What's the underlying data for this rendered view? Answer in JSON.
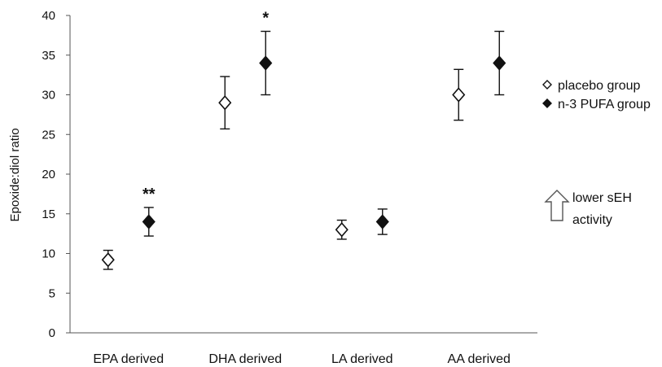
{
  "chart_data": {
    "type": "scatter",
    "title": "",
    "xlabel": "",
    "ylabel": "Epoxide:diol ratio",
    "ylim": [
      0,
      40
    ],
    "yticks": [
      0,
      5,
      10,
      15,
      20,
      25,
      30,
      35,
      40
    ],
    "categories": [
      "EPA derived",
      "DHA derived",
      "LA derived",
      "AA derived"
    ],
    "series": [
      {
        "name": "placebo group",
        "marker": "open-diamond",
        "color": "#000000",
        "values": [
          9.2,
          29.0,
          13.0,
          30.0
        ],
        "error": [
          1.2,
          3.3,
          1.2,
          3.2
        ]
      },
      {
        "name": "n-3 PUFA group",
        "marker": "filled-diamond",
        "color": "#000000",
        "values": [
          14.0,
          34.0,
          14.0,
          34.0
        ],
        "error": [
          1.8,
          4.0,
          1.6,
          4.0
        ]
      }
    ],
    "significance": [
      "**",
      "*",
      "",
      ""
    ],
    "grid": false,
    "legend_position": "right"
  },
  "note": {
    "line1": "lower sEH",
    "line2": "activity"
  }
}
